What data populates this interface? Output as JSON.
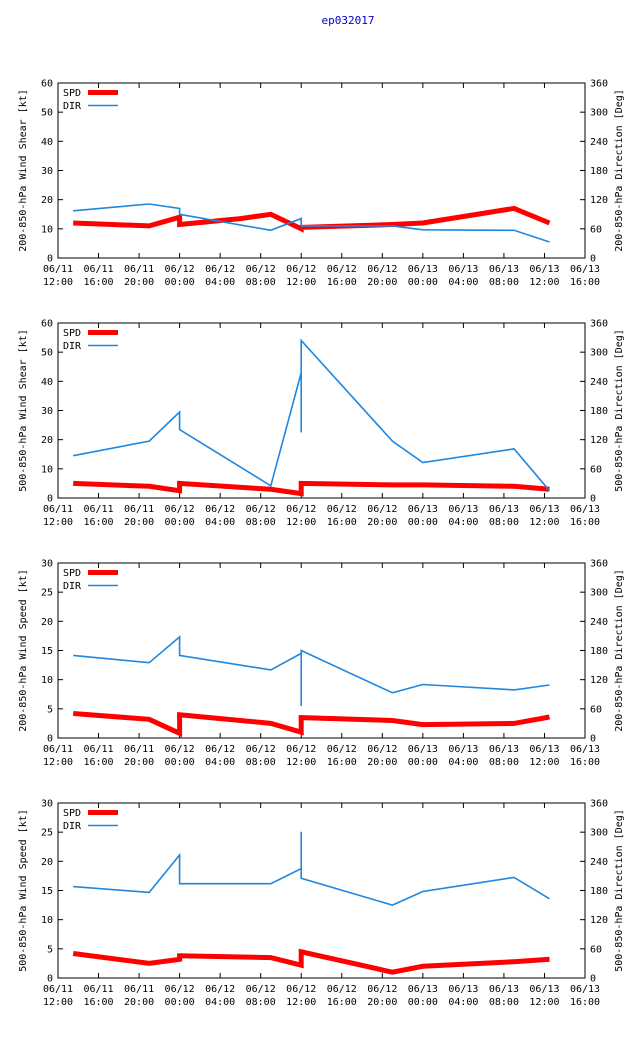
{
  "title": "ep032017",
  "x_ticks": [
    {
      "hours": 0,
      "date": "06/11",
      "time": "12:00"
    },
    {
      "hours": 4,
      "date": "06/11",
      "time": "16:00"
    },
    {
      "hours": 8,
      "date": "06/11",
      "time": "20:00"
    },
    {
      "hours": 12,
      "date": "06/12",
      "time": "00:00"
    },
    {
      "hours": 16,
      "date": "06/12",
      "time": "04:00"
    },
    {
      "hours": 20,
      "date": "06/12",
      "time": "08:00"
    },
    {
      "hours": 24,
      "date": "06/12",
      "time": "12:00"
    },
    {
      "hours": 28,
      "date": "06/12",
      "time": "16:00"
    },
    {
      "hours": 32,
      "date": "06/12",
      "time": "20:00"
    },
    {
      "hours": 36,
      "date": "06/13",
      "time": "00:00"
    },
    {
      "hours": 40,
      "date": "06/13",
      "time": "04:00"
    },
    {
      "hours": 44,
      "date": "06/13",
      "time": "08:00"
    },
    {
      "hours": 48,
      "date": "06/13",
      "time": "12:00"
    },
    {
      "hours": 52,
      "date": "06/13",
      "time": "16:00"
    }
  ],
  "colors": {
    "spd": "#ff0000",
    "dir": "#1e87e0",
    "title": "#0000cc"
  },
  "legend": {
    "spd": "SPD",
    "dir": "DIR"
  },
  "chart_data": [
    {
      "type": "line",
      "ylabel": "200-850-hPa Wind Shear [kt]",
      "y2label": "200-850-hPa Direction [Deg]",
      "xlim": [
        0,
        52
      ],
      "ylim": [
        0,
        60
      ],
      "y2lim": [
        0,
        360
      ],
      "yticks": [
        0,
        10,
        20,
        30,
        40,
        50,
        60
      ],
      "y2ticks": [
        0,
        60,
        120,
        180,
        240,
        300,
        360
      ],
      "series": [
        {
          "name": "SPD",
          "axis": "left",
          "x": [
            1.5,
            9,
            12,
            12,
            18,
            21,
            24,
            24,
            33,
            36,
            45,
            48.5
          ],
          "y": [
            12,
            11,
            14,
            11.5,
            13.5,
            15,
            10,
            10.5,
            11.5,
            12,
            17,
            12
          ]
        },
        {
          "name": "DIR",
          "axis": "right",
          "x": [
            1.5,
            9,
            12,
            12,
            21,
            24,
            24,
            33,
            36,
            45,
            48.5
          ],
          "y": [
            97,
            111,
            102,
            90,
            57,
            81,
            66,
            66,
            58,
            57,
            33
          ]
        }
      ]
    },
    {
      "type": "line",
      "ylabel": "500-850-hPa Wind Shear [kt]",
      "y2label": "500-850-hPa Direction [Deg]",
      "xlim": [
        0,
        52
      ],
      "ylim": [
        0,
        60
      ],
      "y2lim": [
        0,
        360
      ],
      "yticks": [
        0,
        10,
        20,
        30,
        40,
        50,
        60
      ],
      "y2ticks": [
        0,
        60,
        120,
        180,
        240,
        300,
        360
      ],
      "series": [
        {
          "name": "SPD",
          "axis": "left",
          "x": [
            1.5,
            9,
            12,
            12,
            21,
            24,
            24,
            33,
            36,
            45,
            48.5
          ],
          "y": [
            5,
            4,
            2.5,
            5,
            3,
            1.5,
            5,
            4.5,
            4.5,
            4,
            3
          ]
        },
        {
          "name": "DIR",
          "axis": "right",
          "x": [
            1.5,
            9,
            12,
            12,
            21,
            24,
            24,
            24,
            33,
            36,
            45,
            48.5
          ],
          "y": [
            87,
            117,
            177,
            141,
            25,
            258,
            135,
            324,
            117,
            73,
            101,
            15
          ]
        }
      ]
    },
    {
      "type": "line",
      "ylabel": "200-850-hPa Wind Speed [kt]",
      "y2label": "200-850-hPa Direction [Deg]",
      "xlim": [
        0,
        52
      ],
      "ylim": [
        0,
        30
      ],
      "y2lim": [
        0,
        360
      ],
      "yticks": [
        0,
        5,
        10,
        15,
        20,
        25,
        30
      ],
      "y2ticks": [
        0,
        60,
        120,
        180,
        240,
        300,
        360
      ],
      "series": [
        {
          "name": "SPD",
          "axis": "left",
          "x": [
            1.5,
            9,
            12,
            12,
            21,
            24,
            24,
            33,
            36,
            45,
            48.5
          ],
          "y": [
            4.2,
            3.2,
            0.8,
            4,
            2.5,
            1,
            3.5,
            3,
            2.3,
            2.5,
            3.6
          ]
        },
        {
          "name": "DIR",
          "axis": "right",
          "x": [
            1.5,
            9,
            12,
            12,
            21,
            24,
            24,
            24,
            33,
            36,
            45,
            48.5
          ],
          "y": [
            170,
            155,
            208,
            170,
            140,
            174,
            66,
            180,
            93,
            110,
            99,
            109
          ]
        }
      ]
    },
    {
      "type": "line",
      "ylabel": "500-850-hPa Wind Speed [kt]",
      "y2label": "500-850-hPa Direction [Deg]",
      "xlim": [
        0,
        52
      ],
      "ylim": [
        0,
        30
      ],
      "y2lim": [
        0,
        360
      ],
      "yticks": [
        0,
        5,
        10,
        15,
        20,
        25,
        30
      ],
      "y2ticks": [
        0,
        60,
        120,
        180,
        240,
        300,
        360
      ],
      "series": [
        {
          "name": "SPD",
          "axis": "left",
          "x": [
            1.5,
            9,
            12,
            12,
            21,
            24,
            24,
            33,
            36,
            45,
            48.5
          ],
          "y": [
            4.2,
            2.5,
            3.2,
            3.8,
            3.5,
            2.2,
            4.5,
            1,
            2,
            2.8,
            3.2
          ]
        },
        {
          "name": "DIR",
          "axis": "right",
          "x": [
            1.5,
            9,
            12,
            12,
            21,
            24,
            24,
            24,
            33,
            36,
            45,
            48.5
          ],
          "y": [
            188,
            176,
            253,
            194,
            194,
            225,
            301,
            205,
            150,
            178,
            207,
            163
          ]
        }
      ]
    }
  ]
}
